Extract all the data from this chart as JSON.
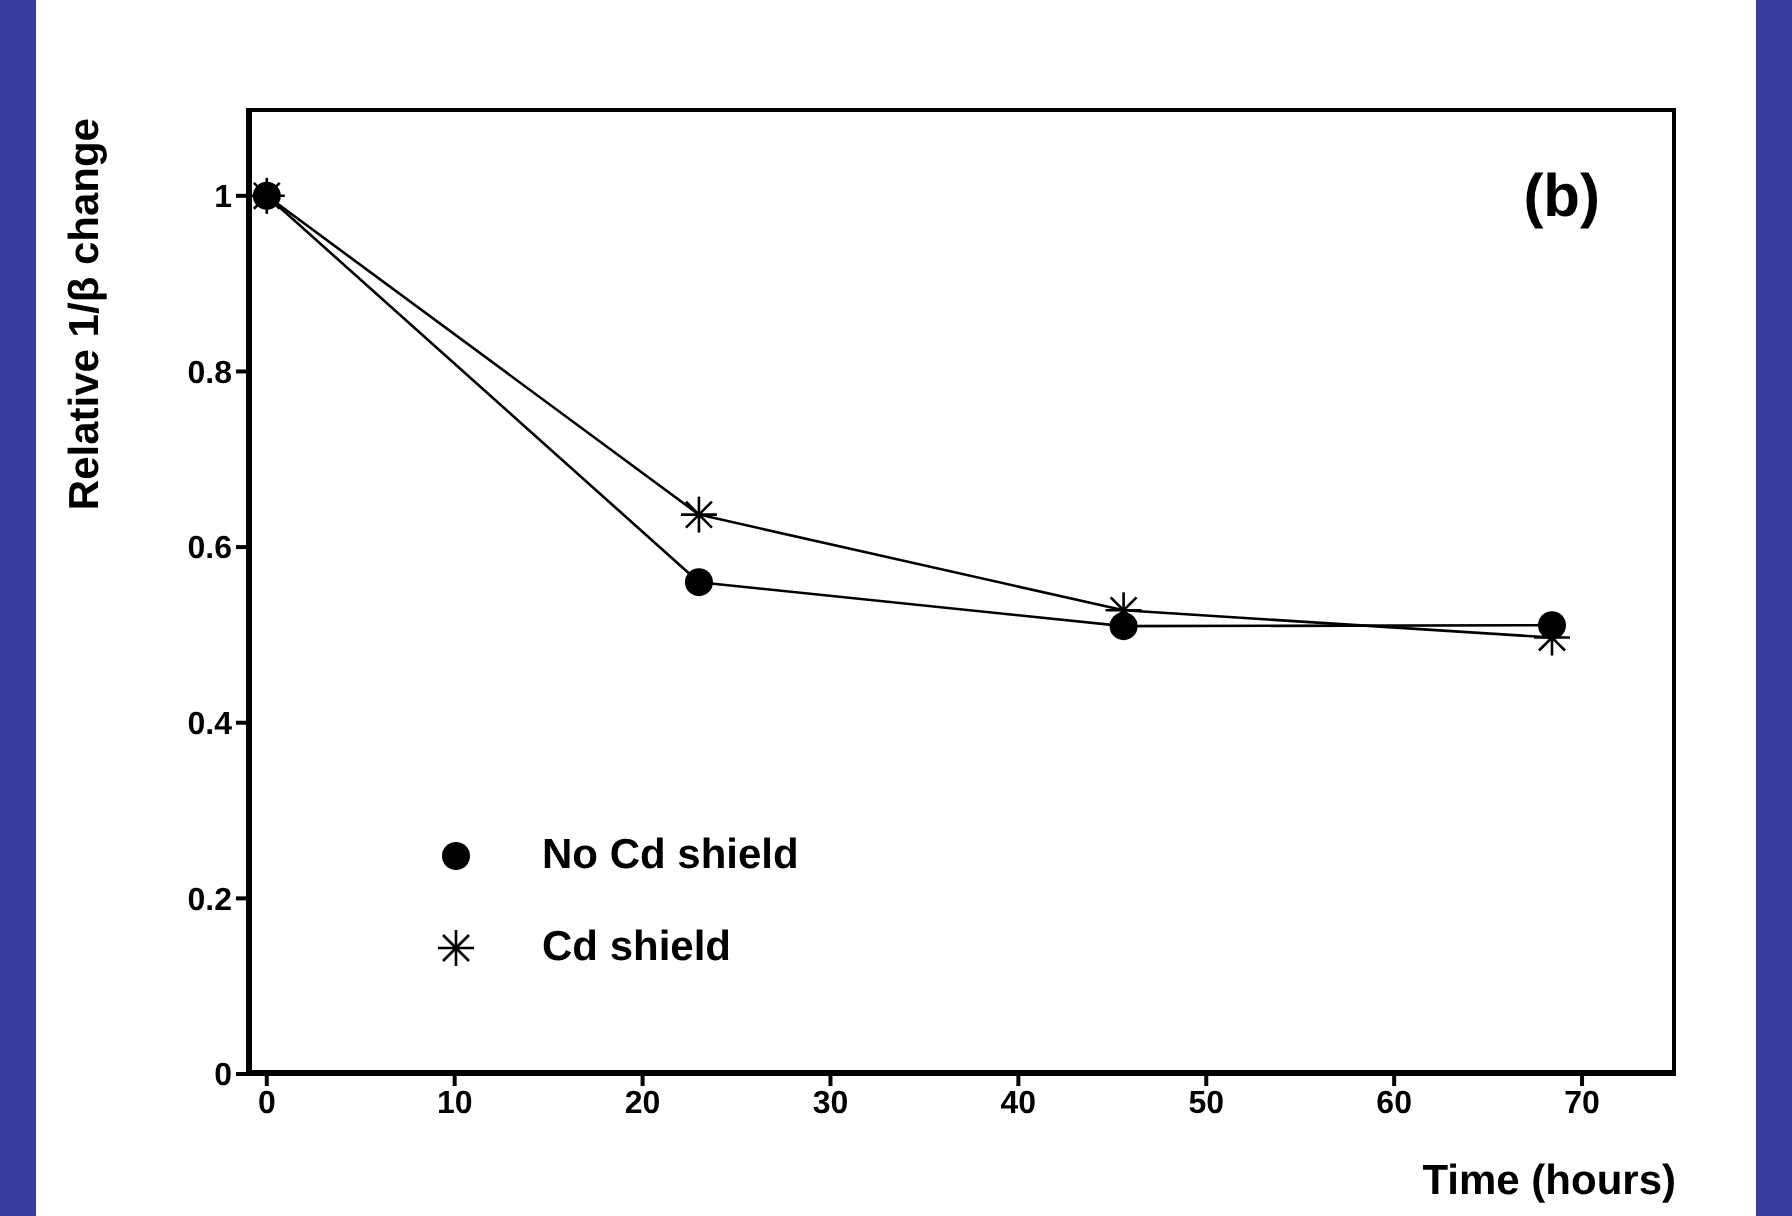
{
  "chart_data": {
    "type": "line",
    "xlabel": "Time (hours)",
    "ylabel": "Relative 1/β change",
    "annotations": [
      "(b)"
    ],
    "xlim": [
      -1,
      75
    ],
    "ylim": [
      0,
      1.1
    ],
    "xticks": [
      0,
      10,
      20,
      30,
      40,
      50,
      60,
      70
    ],
    "yticks": [
      0,
      0.2,
      0.4,
      0.6,
      0.8,
      1
    ],
    "legend": "bottom left",
    "grid": false,
    "series": [
      {
        "name": "No Cd shield",
        "color": "#000000",
        "marker": "circle",
        "x": [
          0,
          23,
          45.6,
          68.4
        ],
        "values": [
          1,
          0.56,
          0.51,
          0.511
        ]
      },
      {
        "name": "Cd shield",
        "color": "#000000",
        "marker": "cross",
        "x": [
          0,
          23,
          45.6,
          68.4
        ],
        "values": [
          1,
          0.637,
          0.528,
          0.497
        ]
      }
    ]
  }
}
